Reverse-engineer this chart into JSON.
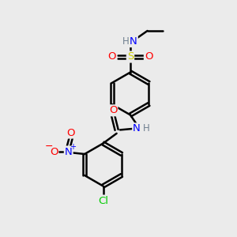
{
  "bg_color": "#ebebeb",
  "bond_color": "#000000",
  "bond_width": 1.8,
  "atom_colors": {
    "C": "#000000",
    "H": "#708090",
    "N": "#0000ff",
    "O": "#ff0000",
    "S": "#cccc00",
    "Cl": "#00cc00"
  },
  "font_size": 8.5,
  "fig_size": [
    3.0,
    3.0
  ],
  "dpi": 100
}
